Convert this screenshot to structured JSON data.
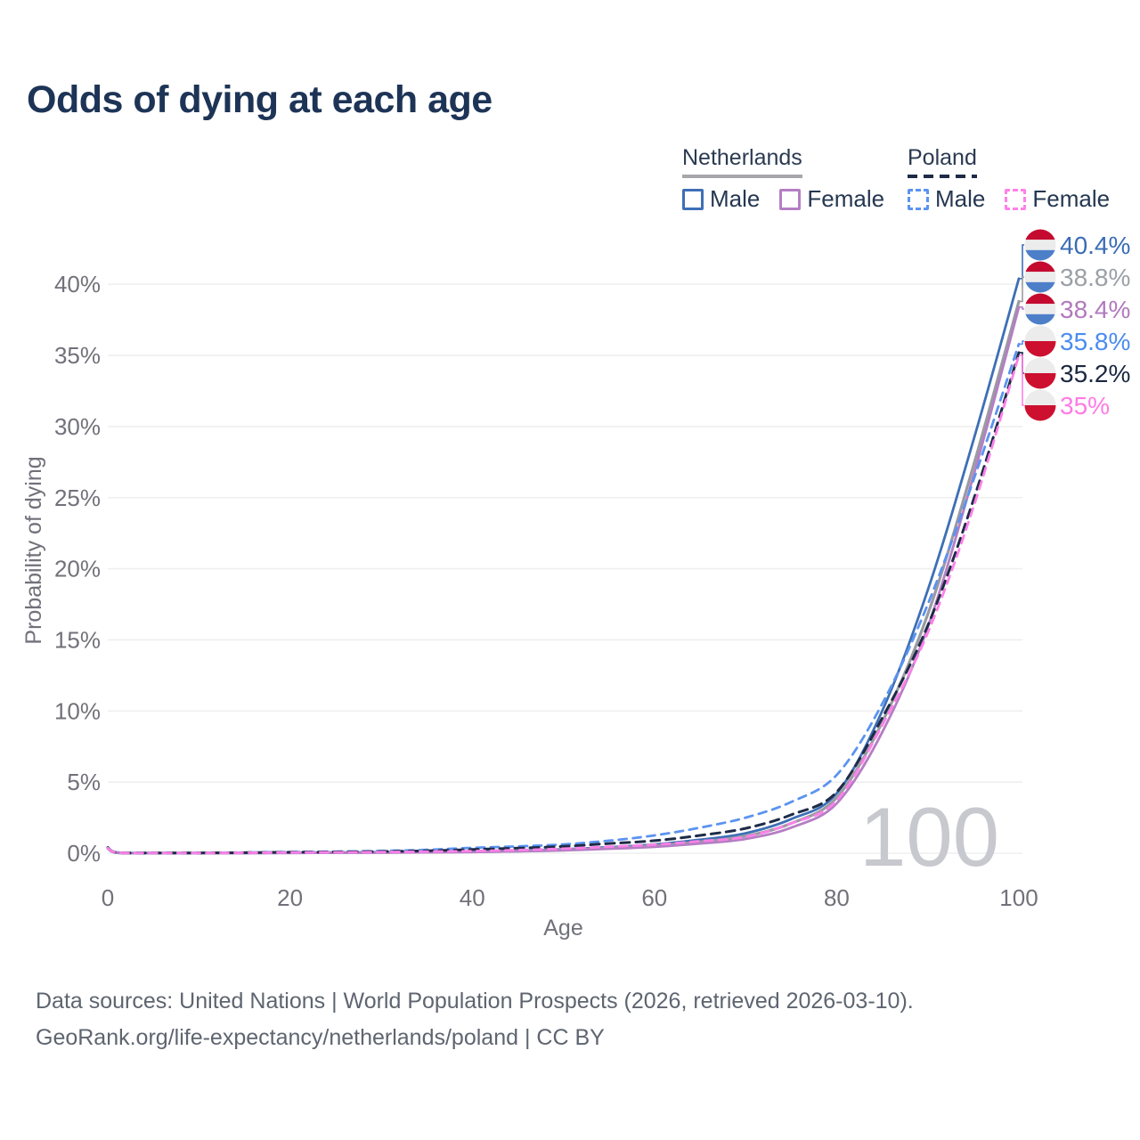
{
  "title": "Odds of dying at each age",
  "legend": {
    "groups": [
      {
        "label": "Netherlands",
        "line_style": "solid",
        "underline_color": "#a7a7ab",
        "items": [
          {
            "label": "Male",
            "color": "#3e6fb5"
          },
          {
            "label": "Female",
            "color": "#b47ec4"
          }
        ]
      },
      {
        "label": "Poland",
        "line_style": "dashed",
        "underline_color": "#1e2b47",
        "items": [
          {
            "label": "Male",
            "color": "#5b93f0"
          },
          {
            "label": "Female",
            "color": "#ff80e8"
          }
        ]
      }
    ]
  },
  "chart_data": {
    "type": "line",
    "xlabel": "Age",
    "ylabel": "Probability of dying",
    "xlim": [
      0,
      100
    ],
    "ylim": [
      0,
      42
    ],
    "xticks": [
      0,
      20,
      40,
      60,
      80,
      100
    ],
    "yticks": [
      0,
      5,
      10,
      15,
      20,
      25,
      30,
      35,
      40
    ],
    "ytick_suffix": "%",
    "grid": true,
    "watermark": "100",
    "legend_position": "top-right",
    "ages": [
      0,
      1,
      5,
      10,
      15,
      20,
      25,
      30,
      35,
      40,
      45,
      50,
      55,
      60,
      65,
      70,
      75,
      80,
      85,
      90,
      95,
      100
    ],
    "series": [
      {
        "name": "Netherlands Male",
        "country": "Netherlands",
        "sex": "Male",
        "style": "solid",
        "color": "#3e6fb5",
        "dash": null,
        "width": 2.8,
        "flag": "netherlands",
        "end_label": "40.4%",
        "end_value": 40.4,
        "label_color": "#3b6cb5",
        "values": [
          0.38,
          0.05,
          0.01,
          0.01,
          0.02,
          0.04,
          0.05,
          0.06,
          0.08,
          0.11,
          0.17,
          0.28,
          0.42,
          0.62,
          0.95,
          1.4,
          2.4,
          4.2,
          10.0,
          18.5,
          29.0,
          40.4
        ]
      },
      {
        "name": "Netherlands Both sexes",
        "country": "Netherlands",
        "sex": "Both",
        "style": "solid",
        "color": "#9a9aa2",
        "dash": null,
        "width": 3.2,
        "flag": "netherlands",
        "end_label": "38.8%",
        "end_value": 38.8,
        "label_color": "#9aa0a6",
        "values": [
          0.36,
          0.04,
          0.01,
          0.01,
          0.02,
          0.03,
          0.04,
          0.05,
          0.07,
          0.1,
          0.15,
          0.24,
          0.36,
          0.53,
          0.8,
          1.2,
          2.1,
          3.9,
          9.2,
          16.8,
          27.2,
          38.8
        ]
      },
      {
        "name": "Netherlands Female",
        "country": "Netherlands",
        "sex": "Female",
        "style": "solid",
        "color": "#b47ec4",
        "dash": null,
        "width": 2.8,
        "flag": "netherlands",
        "end_label": "38.4%",
        "end_value": 38.4,
        "label_color": "#b279bd",
        "values": [
          0.33,
          0.04,
          0.01,
          0.01,
          0.01,
          0.02,
          0.03,
          0.04,
          0.06,
          0.08,
          0.13,
          0.2,
          0.31,
          0.45,
          0.68,
          1.0,
          1.8,
          3.5,
          8.5,
          15.9,
          26.5,
          38.4
        ]
      },
      {
        "name": "Poland Male",
        "country": "Poland",
        "sex": "Male",
        "style": "dashed",
        "color": "#5b93f0",
        "dash": "9 7",
        "width": 2.8,
        "flag": "poland",
        "end_label": "35.8%",
        "end_value": 35.8,
        "label_color": "#4a8cf0",
        "values": [
          0.42,
          0.06,
          0.02,
          0.02,
          0.05,
          0.09,
          0.12,
          0.16,
          0.24,
          0.38,
          0.48,
          0.62,
          0.88,
          1.25,
          1.8,
          2.5,
          3.6,
          5.5,
          10.5,
          17.5,
          26.2,
          35.8
        ]
      },
      {
        "name": "Poland Both sexes",
        "country": "Poland",
        "sex": "Both",
        "style": "dashed",
        "color": "#1e2b47",
        "dash": "10 7",
        "width": 3.0,
        "flag": "poland",
        "end_label": "35.2%",
        "end_value": 35.2,
        "label_color": "#1b2840",
        "values": [
          0.4,
          0.05,
          0.02,
          0.02,
          0.04,
          0.07,
          0.09,
          0.12,
          0.17,
          0.26,
          0.36,
          0.48,
          0.68,
          0.88,
          1.25,
          1.75,
          2.7,
          4.3,
          9.5,
          16.0,
          24.8,
          35.2
        ]
      },
      {
        "name": "Poland Female",
        "country": "Poland",
        "sex": "Female",
        "style": "dashed",
        "color": "#ff80e8",
        "dash": "9 7",
        "width": 2.8,
        "flag": "poland",
        "end_label": "35%",
        "end_value": 35.0,
        "label_color": "#ff7be5",
        "values": [
          0.37,
          0.05,
          0.01,
          0.01,
          0.03,
          0.05,
          0.06,
          0.08,
          0.11,
          0.15,
          0.22,
          0.32,
          0.46,
          0.6,
          0.85,
          1.15,
          2.1,
          3.7,
          9.0,
          15.5,
          24.3,
          35.0
        ]
      }
    ],
    "flag_colors": {
      "netherlands_red": "#c40b2f",
      "netherlands_white": "#ececec",
      "netherlands_blue": "#4d7fc9",
      "poland_white": "#ececec",
      "poland_red": "#cd1030"
    }
  },
  "style_colors": {
    "title": "#1d3456",
    "axis_text": "#71717a",
    "grid": "#efeff1",
    "watermark": "#c8c9ce",
    "footer_text": "#5e6570"
  },
  "footer": {
    "line1": "Data sources: United Nations | World Population Prospects (2026, retrieved 2026-03-10).",
    "line2": "GeoRank.org/life-expectancy/netherlands/poland | CC BY"
  }
}
